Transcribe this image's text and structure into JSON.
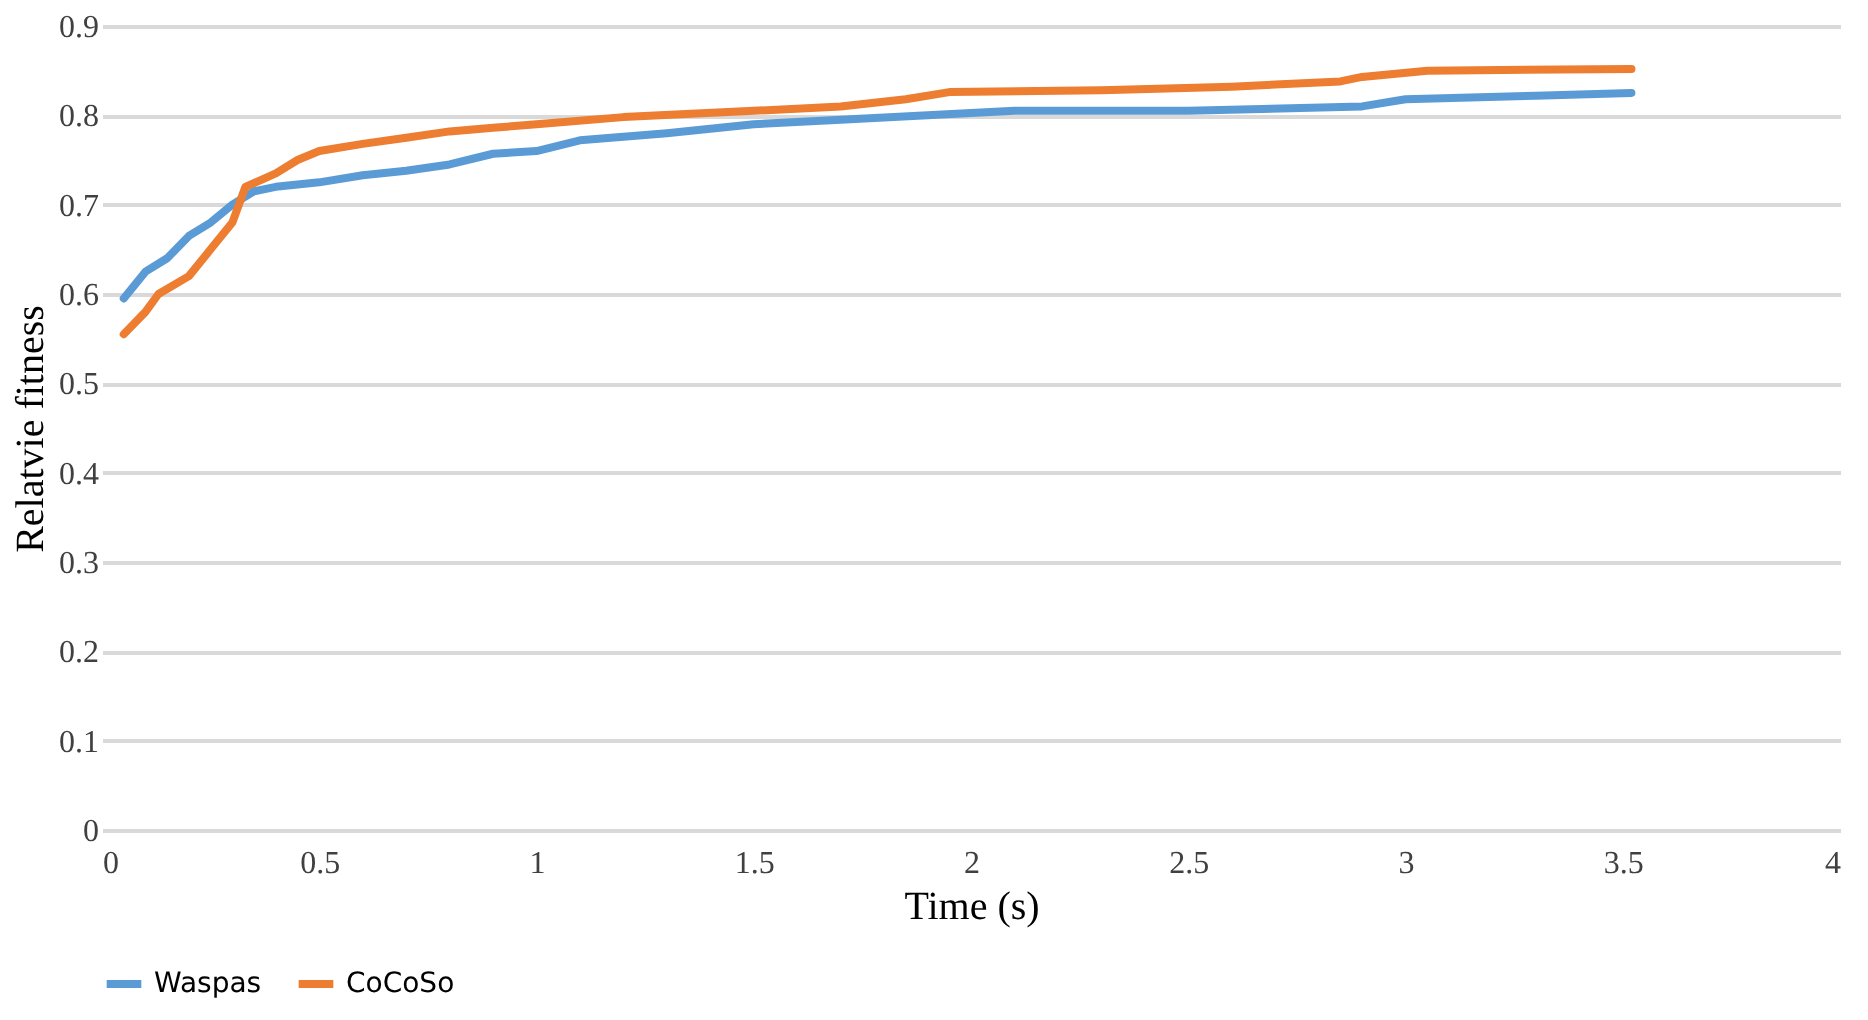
{
  "chart_data": {
    "type": "line",
    "xlabel": "Time (s)",
    "ylabel": "Relatvie fitness",
    "xlim": [
      0,
      4
    ],
    "xticks": [
      0,
      0.5,
      1,
      1.5,
      2,
      2.5,
      3,
      3.5,
      4
    ],
    "ylim": [
      0,
      0.9
    ],
    "yticks": [
      0,
      0.1,
      0.2,
      0.3,
      0.4,
      0.5,
      0.6,
      0.7,
      0.8,
      0.9
    ],
    "grid": "y",
    "legend": "bottom",
    "marker": "none",
    "line_style": "solid",
    "series": [
      {
        "name": "Waspas",
        "color": "#5b9bd5",
        "x": [
          0.05,
          0.1,
          0.15,
          0.2,
          0.25,
          0.3,
          0.35,
          0.4,
          0.5,
          0.6,
          0.7,
          0.8,
          0.9,
          1.0,
          1.1,
          1.3,
          1.5,
          1.7,
          1.9,
          2.1,
          2.5,
          2.9,
          3.0,
          3.3,
          3.52
        ],
        "values": [
          0.595,
          0.625,
          0.64,
          0.665,
          0.68,
          0.7,
          0.715,
          0.72,
          0.725,
          0.733,
          0.738,
          0.745,
          0.757,
          0.76,
          0.772,
          0.78,
          0.79,
          0.795,
          0.8,
          0.805,
          0.805,
          0.81,
          0.818,
          0.822,
          0.825
        ]
      },
      {
        "name": "CoCoSo",
        "color": "#ed7d31",
        "x": [
          0.05,
          0.1,
          0.13,
          0.2,
          0.25,
          0.3,
          0.33,
          0.4,
          0.45,
          0.5,
          0.6,
          0.7,
          0.8,
          0.9,
          1.0,
          1.2,
          1.5,
          1.7,
          1.85,
          1.95,
          2.3,
          2.6,
          2.85,
          2.9,
          3.05,
          3.52
        ],
        "values": [
          0.555,
          0.58,
          0.6,
          0.62,
          0.65,
          0.68,
          0.72,
          0.735,
          0.75,
          0.76,
          0.768,
          0.775,
          0.782,
          0.786,
          0.79,
          0.798,
          0.805,
          0.81,
          0.818,
          0.826,
          0.828,
          0.832,
          0.838,
          0.843,
          0.85,
          0.852
        ]
      }
    ]
  }
}
